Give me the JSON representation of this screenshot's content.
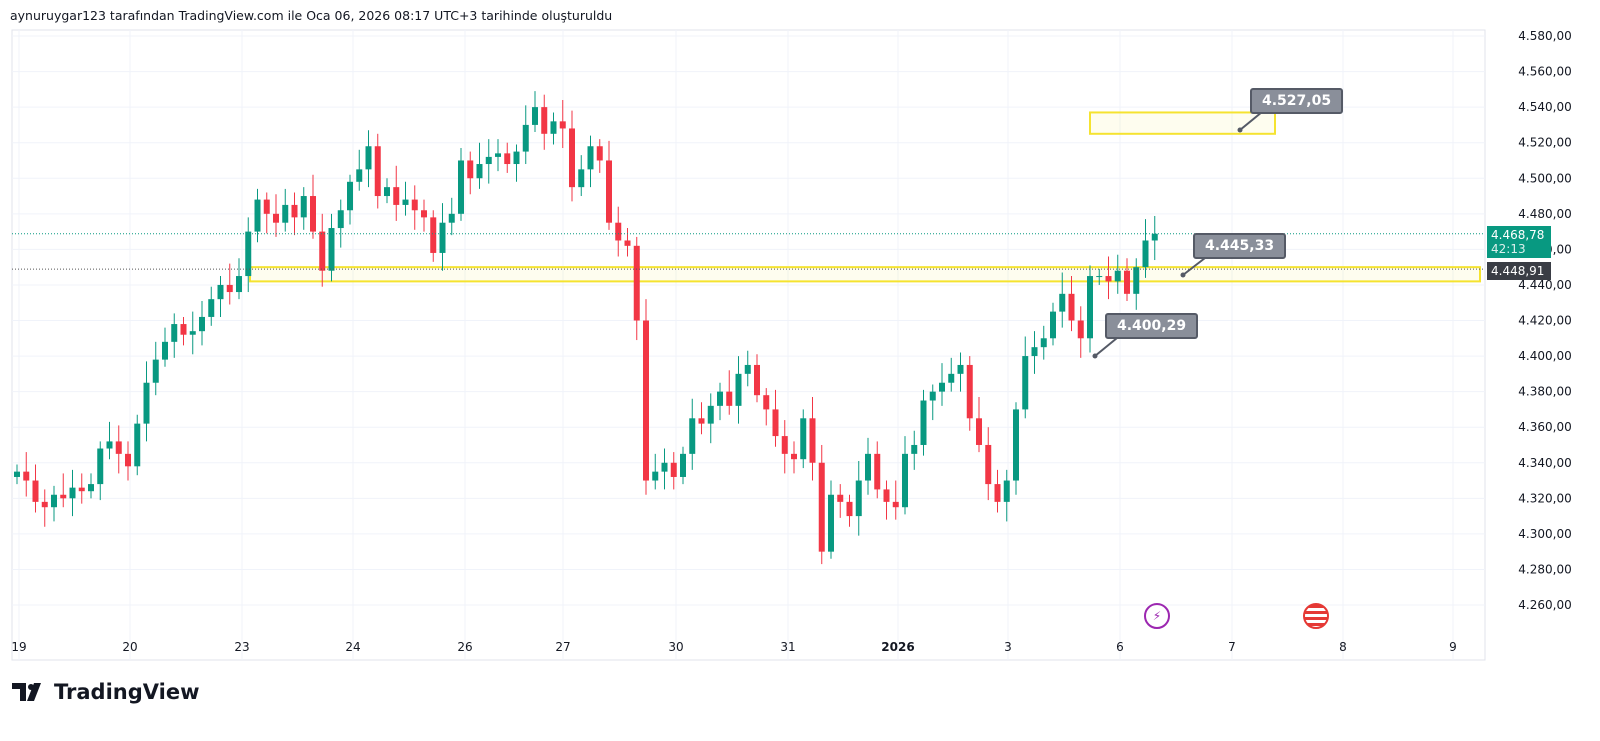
{
  "header": {
    "text": "aynuruygar123 tarafından TradingView.com ile Oca 06, 2026 08:17 UTC+3 tarihinde oluşturuldu"
  },
  "logo": {
    "text": "TradingView"
  },
  "price_labels": {
    "last_price": "4.468,78",
    "countdown": "42:13",
    "marker": "4.448,91"
  },
  "callouts": [
    "4.527,05",
    "4.445,33",
    "4.400,29"
  ],
  "colors": {
    "up": "#089981",
    "down": "#f23645",
    "zone": "#f5e330",
    "callout": "#8a8f9a"
  },
  "icons": [
    "lightning-event-icon",
    "us-flag-icon"
  ],
  "chart_data": {
    "type": "candlestick",
    "title": "",
    "ylim": [
      4260,
      4580
    ],
    "yticks": [
      "4.260,00",
      "4.280,00",
      "4.300,00",
      "4.320,00",
      "4.340,00",
      "4.360,00",
      "4.380,00",
      "4.400,00",
      "4.420,00",
      "4.440,00",
      "4.460,00",
      "4.480,00",
      "4.500,00",
      "4.520,00",
      "4.540,00",
      "4.560,00",
      "4.580,00"
    ],
    "xticks": [
      "19",
      "20",
      "23",
      "24",
      "26",
      "27",
      "30",
      "31",
      "2026",
      "3",
      "6",
      "7",
      "8",
      "9"
    ],
    "bars_per_day": 12,
    "first_open": 4332,
    "close": [
      4335,
      4330,
      4318,
      4315,
      4322,
      4320,
      4326,
      4324,
      4328,
      4348,
      4352,
      4345,
      4338,
      4362,
      4385,
      4398,
      4408,
      4418,
      4412,
      4414,
      4422,
      4432,
      4440,
      4436,
      4445,
      4470,
      4488,
      4480,
      4475,
      4485,
      4478,
      4490,
      4470,
      4448,
      4472,
      4482,
      4498,
      4505,
      4518,
      4490,
      4495,
      4485,
      4488,
      4482,
      4478,
      4458,
      4475,
      4480,
      4510,
      4500,
      4508,
      4512,
      4514,
      4508,
      4515,
      4530,
      4540,
      4525,
      4532,
      4528,
      4495,
      4505,
      4518,
      4510,
      4475,
      4465,
      4462,
      4420,
      4330,
      4335,
      4340,
      4332,
      4345,
      4365,
      4362,
      4372,
      4380,
      4372,
      4390,
      4395,
      4378,
      4370,
      4355,
      4345,
      4342,
      4365,
      4340,
      4290,
      4322,
      4318,
      4310,
      4330,
      4345,
      4325,
      4318,
      4315,
      4345,
      4350,
      4375,
      4380,
      4385,
      4390,
      4395,
      4365,
      4350,
      4328,
      4318,
      4330,
      4370,
      4400,
      4405,
      4410,
      4425,
      4435,
      4420,
      4410,
      4445,
      4445,
      4442,
      4448,
      4435,
      4450,
      4465,
      4468.78
    ],
    "last_price": 4468.78,
    "marker_price": 4448.91,
    "zones": [
      {
        "from": 4525,
        "to": 4537
      },
      {
        "from": 4442,
        "to": 4450
      }
    ],
    "annotations": [
      {
        "text": "4.527,05",
        "price": 4527.05
      },
      {
        "text": "4.445,33",
        "price": 4445.33
      },
      {
        "text": "4.400,29",
        "price": 4400.29
      }
    ]
  }
}
